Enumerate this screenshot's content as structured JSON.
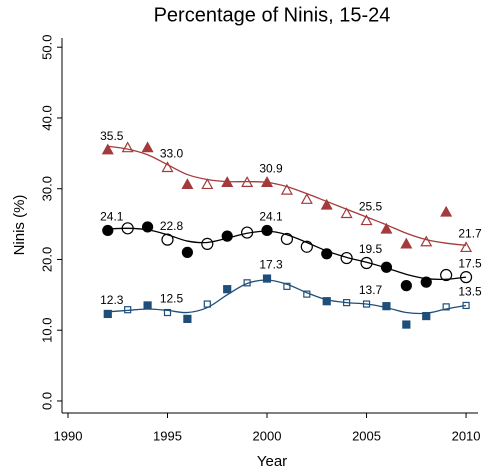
{
  "chart_data": {
    "type": "line",
    "title": "Percentage of Ninis, 15-24",
    "x_label": "Year",
    "y_label": "Ninis (%)",
    "x": [
      1992,
      1993,
      1994,
      1995,
      1996,
      1997,
      1998,
      1999,
      2000,
      2001,
      2002,
      2003,
      2004,
      2005,
      2006,
      2007,
      2008,
      2009,
      2010
    ],
    "xlim": [
      1989.7,
      2010.6
    ],
    "xticks": [
      1990,
      1995,
      2000,
      2005,
      2010
    ],
    "ylim": [
      -1.7,
      51.3
    ],
    "yticks": [
      {
        "value": 0,
        "label": "0.0"
      },
      {
        "value": 10,
        "label": "10.0"
      },
      {
        "value": 20,
        "label": "20.0"
      },
      {
        "value": 30,
        "label": "30.0"
      },
      {
        "value": 40,
        "label": "40.0"
      },
      {
        "value": 50,
        "label": "50.0"
      }
    ],
    "series": [
      {
        "color": "#a33a3c",
        "marker": "triangle",
        "values": [
          35.5,
          35.8,
          35.8,
          33,
          30.6,
          30.6,
          30.9,
          30.9,
          30.9,
          29.8,
          28.5,
          27.7,
          26.5,
          25.5,
          24.3,
          22.2,
          22.5,
          26.7,
          21.7
        ],
        "value_labels": [
          "35.5",
          null,
          null,
          "33.0",
          null,
          null,
          null,
          null,
          "30.9",
          null,
          null,
          null,
          null,
          "25.5",
          null,
          null,
          null,
          null,
          "21.7"
        ],
        "filled": [
          true,
          false,
          true,
          false,
          true,
          false,
          true,
          false,
          true,
          false,
          false,
          true,
          false,
          false,
          true,
          true,
          false,
          true,
          false
        ],
        "fit": [
          36,
          35.6,
          34.8,
          33.4,
          32,
          31.3,
          31,
          31,
          30.9,
          30.3,
          29.3,
          28.2,
          27.1,
          26,
          24.9,
          23.7,
          22.8,
          22.3,
          22
        ]
      },
      {
        "color": "#000000",
        "marker": "circle",
        "values": [
          24.1,
          24.4,
          24.6,
          22.8,
          21,
          22.2,
          23.3,
          23.8,
          24.1,
          22.9,
          21.8,
          20.8,
          20.2,
          19.5,
          18.9,
          16.3,
          16.8,
          17.8,
          17.5
        ],
        "value_labels": [
          "24.1",
          null,
          null,
          "22.8",
          null,
          null,
          null,
          null,
          "24.1",
          null,
          null,
          null,
          null,
          "19.5",
          null,
          null,
          null,
          null,
          "17.5"
        ],
        "filled": [
          true,
          false,
          true,
          false,
          true,
          false,
          true,
          false,
          true,
          false,
          false,
          true,
          false,
          false,
          true,
          true,
          true,
          false,
          false
        ],
        "fit": [
          24.3,
          24.4,
          24.2,
          23.5,
          22.6,
          22.4,
          23,
          23.7,
          24,
          23.5,
          22.4,
          21.2,
          20.3,
          19.6,
          18.8,
          17.9,
          17.3,
          17.2,
          17.5
        ]
      },
      {
        "color": "#1f4e79",
        "marker": "square",
        "values": [
          12.3,
          12.9,
          13.5,
          12.5,
          11.6,
          13.7,
          15.8,
          16.7,
          17.3,
          16.2,
          15.1,
          14.1,
          13.9,
          13.7,
          13.4,
          10.8,
          12,
          13.3,
          13.5
        ],
        "value_labels": [
          "12.3",
          null,
          null,
          "12.5",
          null,
          null,
          null,
          null,
          "17.3",
          null,
          null,
          null,
          null,
          "13.7",
          null,
          null,
          null,
          null,
          "13.5"
        ],
        "filled": [
          true,
          false,
          true,
          false,
          true,
          false,
          true,
          false,
          true,
          false,
          false,
          true,
          false,
          false,
          true,
          true,
          true,
          false,
          false
        ],
        "fit": [
          12.6,
          12.8,
          13,
          12.8,
          12.5,
          13.2,
          15,
          16.6,
          17.1,
          16.5,
          15.3,
          14.3,
          13.9,
          13.7,
          13.2,
          12.5,
          12.4,
          13,
          13.5
        ]
      }
    ]
  }
}
